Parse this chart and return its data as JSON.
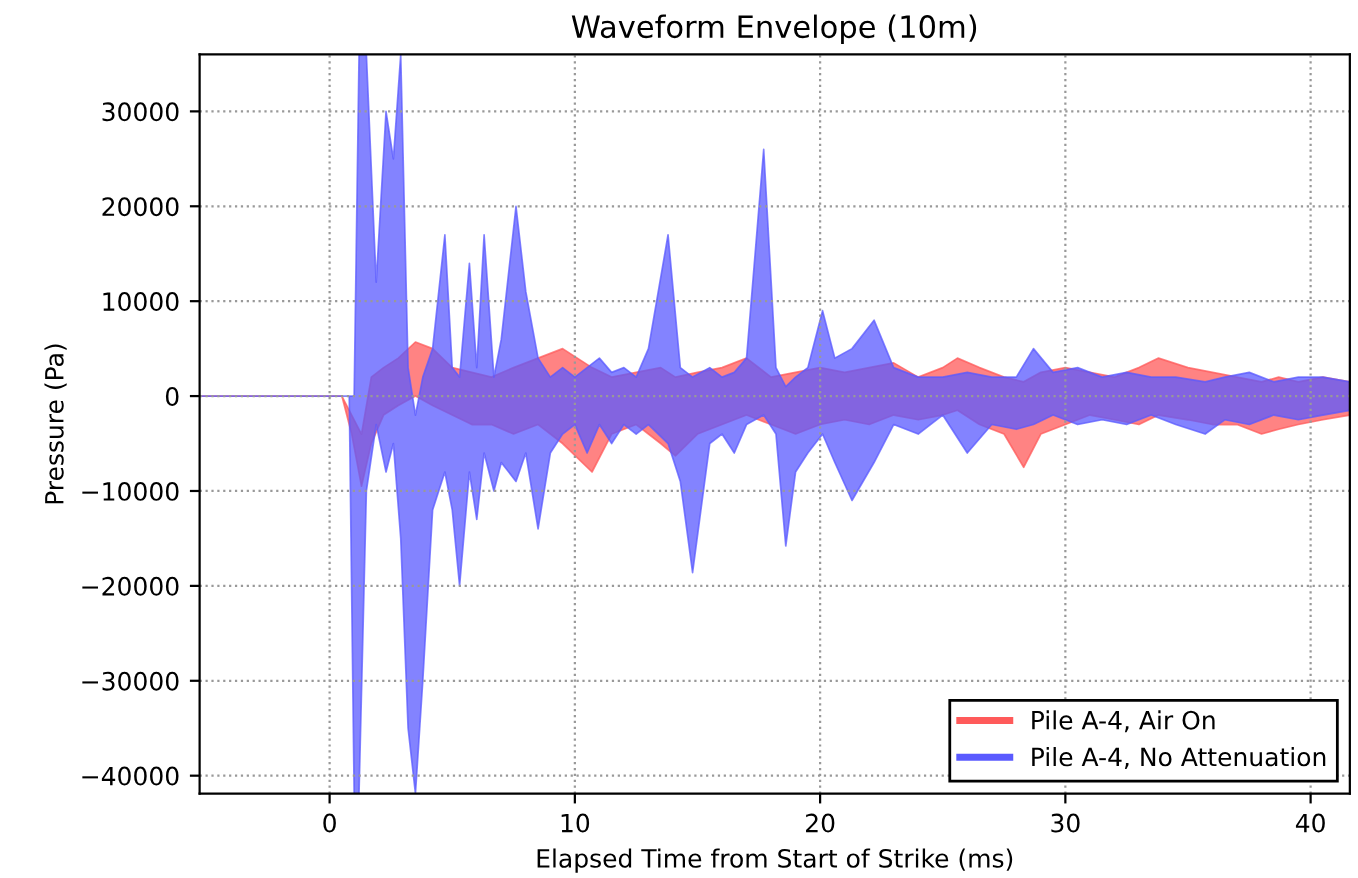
{
  "chart_data": {
    "type": "line",
    "title": "Waveform Envelope (10m)",
    "xlabel": "Elapsed Time from Start of Strike (ms)",
    "ylabel": "Pressure (Pa)",
    "xlim": [
      -5.3,
      41.6
    ],
    "ylim": [
      -41900,
      36000
    ],
    "xticks": [
      0,
      10,
      20,
      30,
      40
    ],
    "yticks": [
      {
        "value": -40000,
        "label": "−40000"
      },
      {
        "value": -30000,
        "label": "−30000"
      },
      {
        "value": -20000,
        "label": "−20000"
      },
      {
        "value": -10000,
        "label": "−10000"
      },
      0,
      10000,
      20000,
      30000
    ],
    "grid": true,
    "legend": "bottom right",
    "series": [
      {
        "name": "Pile A-4, Air On",
        "color": "#ff5a5a",
        "x": [
          -5.3,
          0.5,
          0.9,
          1.3,
          1.7,
          2.2,
          2.8,
          3.5,
          4.2,
          5,
          5.8,
          6.6,
          7.5,
          8.5,
          9.5,
          10.7,
          11.5,
          12.5,
          13.5,
          14.1,
          15,
          16,
          17,
          18,
          19,
          20,
          21,
          22,
          23,
          24,
          25,
          25.6,
          26.5,
          27.5,
          28.3,
          29,
          30,
          31,
          32,
          33,
          33.8,
          35,
          36,
          37,
          38,
          38.7,
          39.5,
          40.5,
          41.6
        ],
        "values": [
          null,
          null,
          null,
          null,
          null,
          null,
          null,
          null,
          null,
          null,
          null,
          null,
          null,
          null,
          null,
          null,
          null,
          null,
          null,
          null,
          null,
          null,
          null,
          null,
          null,
          null,
          null,
          null,
          null,
          null,
          null,
          null,
          null,
          null,
          null,
          null,
          null,
          null,
          null,
          null,
          null,
          null,
          null,
          null,
          null,
          null,
          null,
          null,
          null
        ],
        "upper": [
          0,
          0,
          -2000,
          -4000,
          2000,
          3000,
          4000,
          5700,
          5000,
          3000,
          2500,
          2000,
          3000,
          4000,
          5000,
          3000,
          2000,
          2500,
          3000,
          2000,
          2500,
          3000,
          4000,
          2000,
          2500,
          3000,
          2500,
          3000,
          3500,
          2000,
          3000,
          4000,
          3000,
          2000,
          1500,
          2500,
          3000,
          2500,
          2000,
          3000,
          4000,
          3000,
          2500,
          2000,
          1500,
          2000,
          1500,
          2000,
          1500
        ],
        "lower": [
          0,
          0,
          -4000,
          -9500,
          -5000,
          -2000,
          -1000,
          0,
          -1000,
          -2000,
          -3000,
          -3000,
          -4000,
          -3000,
          -5000,
          -8000,
          -4000,
          -3000,
          -5000,
          -6300,
          -4000,
          -3000,
          -2000,
          -3000,
          -4000,
          -3000,
          -2500,
          -3000,
          -2000,
          -2500,
          -2000,
          -1500,
          -3000,
          -4000,
          -7500,
          -4000,
          -3000,
          -2000,
          -2500,
          -3000,
          -2000,
          -2500,
          -3000,
          -3000,
          -4000,
          -3500,
          -3000,
          -2500,
          -2000
        ]
      },
      {
        "name": "Pile A-4, No Attenuation",
        "color": "#5a5aff",
        "x": [
          -5.3,
          0.8,
          1.0,
          1.2,
          1.5,
          1.9,
          2.3,
          2.6,
          2.9,
          3.2,
          3.5,
          3.8,
          4.2,
          4.7,
          5.0,
          5.3,
          5.7,
          6.0,
          6.3,
          6.7,
          7.0,
          7.6,
          8.0,
          8.5,
          9.0,
          9.5,
          10,
          10.5,
          11,
          11.5,
          12,
          12.5,
          13,
          13.8,
          14.3,
          14.8,
          15.5,
          16,
          16.5,
          17,
          17.7,
          18.2,
          18.6,
          19,
          19.5,
          20.1,
          20.6,
          21.3,
          22.2,
          23,
          24,
          25,
          26,
          27,
          28,
          28.7,
          29.5,
          30.5,
          31.5,
          32.5,
          33.5,
          34.5,
          35.7,
          36.5,
          37.5,
          38.5,
          39.5,
          40.5,
          41.6
        ],
        "values": [
          null,
          null,
          null,
          null,
          null,
          null,
          null,
          null,
          null,
          null,
          null,
          null,
          null,
          null,
          null,
          null,
          null,
          null,
          null,
          null,
          null,
          null,
          null,
          null,
          null,
          null,
          null,
          null,
          null,
          null,
          null,
          null,
          null,
          null,
          null,
          null,
          null,
          null,
          null,
          null,
          null,
          null,
          null,
          null,
          null,
          null,
          null,
          null,
          null,
          null,
          null,
          null,
          null,
          null,
          null,
          null,
          null,
          null,
          null,
          null,
          null,
          null,
          null,
          null,
          null,
          null,
          null,
          null,
          null
        ],
        "upper": [
          0,
          0,
          0,
          36000,
          36000,
          12000,
          30000,
          25000,
          36000,
          3000,
          -2000,
          2000,
          5000,
          17000,
          3000,
          2000,
          14000,
          3000,
          17000,
          2000,
          6000,
          20000,
          11000,
          4000,
          2000,
          3000,
          2000,
          3000,
          4000,
          2500,
          3000,
          2000,
          5000,
          17000,
          3000,
          2000,
          3000,
          2000,
          2500,
          4000,
          26000,
          3000,
          1000,
          2000,
          3000,
          9000,
          4000,
          5000,
          8000,
          3000,
          2000,
          2000,
          2500,
          2000,
          2000,
          5000,
          2500,
          3000,
          2000,
          2500,
          2000,
          2000,
          1500,
          2000,
          2500,
          1500,
          2000,
          2000,
          1500
        ],
        "lower": [
          0,
          0,
          -41900,
          -41900,
          -10000,
          -3000,
          -8000,
          -5000,
          -15000,
          -35000,
          -41900,
          -30000,
          -12000,
          -8000,
          -12000,
          -20000,
          -8000,
          -13000,
          -6000,
          -10000,
          -7000,
          -9000,
          -6000,
          -14000,
          -6000,
          -4000,
          -3000,
          -6000,
          -3000,
          -5000,
          -3000,
          -4000,
          -3000,
          -5000,
          -9000,
          -18600,
          -5000,
          -4000,
          -6000,
          -3000,
          -2000,
          -4000,
          -15800,
          -8000,
          -6000,
          -4000,
          -7000,
          -11000,
          -7000,
          -3000,
          -4000,
          -2000,
          -6000,
          -3000,
          -3500,
          -3000,
          -2000,
          -3000,
          -2500,
          -3000,
          -2000,
          -3000,
          -4000,
          -2500,
          -3000,
          -2000,
          -2500,
          -2000,
          -1500
        ]
      }
    ]
  }
}
